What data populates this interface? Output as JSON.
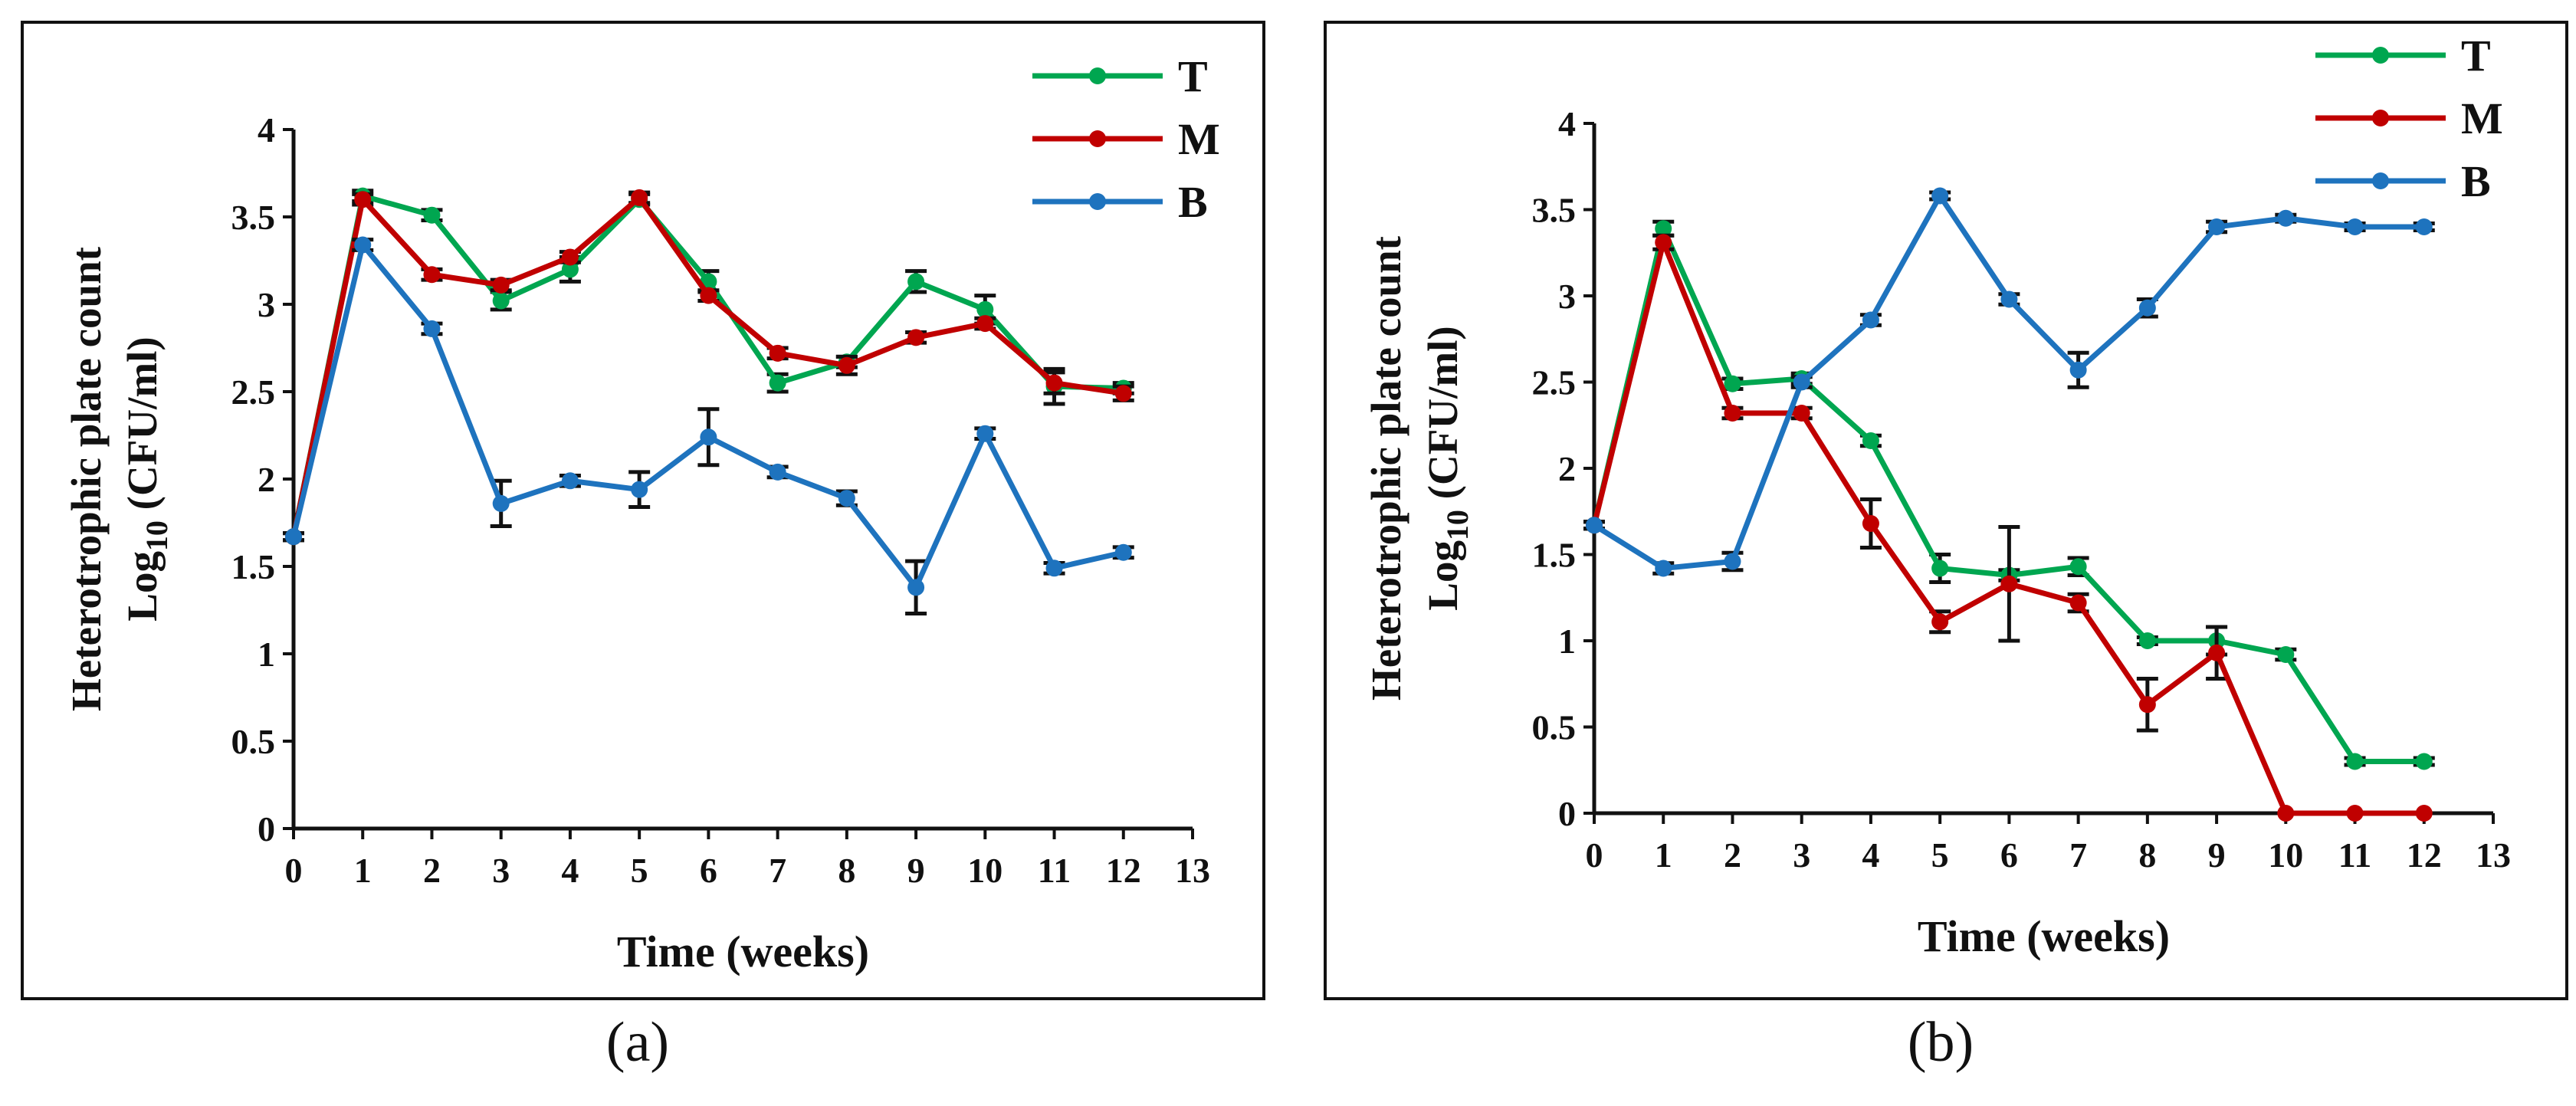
{
  "chart_data": [
    {
      "type": "line",
      "caption": "(a)",
      "xlabel": "Time (weeks)",
      "ylabel_line1": "Heterotrophic plate count",
      "ylabel_line2": {
        "base": "Log",
        "sub": "10",
        "rest": " (CFU/ml)"
      },
      "xlim": [
        0,
        13
      ],
      "ylim": [
        0,
        4
      ],
      "x_ticks": [
        "0",
        "1",
        "2",
        "3",
        "4",
        "5",
        "6",
        "7",
        "8",
        "9",
        "10",
        "11",
        "12",
        "13"
      ],
      "y_ticks": [
        "0",
        "0.5",
        "1",
        "1.5",
        "2",
        "2.5",
        "3",
        "3.5",
        "4"
      ],
      "legend_position": "top-right",
      "x": [
        0,
        1,
        2,
        3,
        4,
        5,
        6,
        7,
        8,
        9,
        10,
        11,
        12
      ],
      "series": [
        {
          "name": "T",
          "color": "#00A650",
          "values": [
            1.67,
            3.62,
            3.51,
            3.02,
            3.2,
            3.6,
            3.13,
            2.55,
            2.67,
            3.13,
            2.97,
            2.53,
            2.52
          ],
          "errors": [
            0.02,
            0.03,
            0.03,
            0.05,
            0.07,
            0.03,
            0.06,
            0.05,
            0.03,
            0.06,
            0.08,
            0.1,
            0.03
          ]
        },
        {
          "name": "M",
          "color": "#C00000",
          "values": [
            1.67,
            3.6,
            3.17,
            3.11,
            3.27,
            3.61,
            3.05,
            2.72,
            2.65,
            2.81,
            2.89,
            2.55,
            2.49
          ],
          "errors": [
            0.02,
            0.03,
            0.03,
            0.03,
            0.03,
            0.03,
            0.03,
            0.03,
            0.05,
            0.03,
            0.03,
            0.06,
            0.04
          ]
        },
        {
          "name": "B",
          "color": "#1E73BE",
          "values": [
            1.67,
            3.34,
            2.86,
            1.86,
            1.99,
            1.94,
            2.24,
            2.04,
            1.89,
            1.38,
            2.26,
            1.49,
            1.58
          ],
          "errors": [
            0.02,
            0.03,
            0.03,
            0.13,
            0.03,
            0.1,
            0.16,
            0.03,
            0.04,
            0.15,
            0.03,
            0.03,
            0.03
          ]
        }
      ]
    },
    {
      "type": "line",
      "caption": "(b)",
      "xlabel": "Time (weeks)",
      "ylabel_line1": "Heterotrophic plate count",
      "ylabel_line2": {
        "base": "Log",
        "sub": "10",
        "rest": " (CFU/ml)"
      },
      "xlim": [
        0,
        13
      ],
      "ylim": [
        0,
        4
      ],
      "x_ticks": [
        "0",
        "1",
        "2",
        "3",
        "4",
        "5",
        "6",
        "7",
        "8",
        "9",
        "10",
        "11",
        "12",
        "13"
      ],
      "y_ticks": [
        "0",
        "0.5",
        "1",
        "1.5",
        "2",
        "2.5",
        "3",
        "3.5",
        "4"
      ],
      "legend_position": "top-right",
      "x": [
        0,
        1,
        2,
        3,
        4,
        5,
        6,
        7,
        8,
        9,
        10,
        11,
        12
      ],
      "series": [
        {
          "name": "T",
          "color": "#00A650",
          "values": [
            1.67,
            3.39,
            2.49,
            2.52,
            2.16,
            1.42,
            1.38,
            1.43,
            1.0,
            1.0,
            0.92,
            0.3,
            0.3
          ],
          "errors": [
            0.02,
            0.04,
            0.03,
            0.03,
            0.03,
            0.08,
            0.03,
            0.05,
            0.02,
            0.08,
            0.03,
            0.02,
            0.02
          ]
        },
        {
          "name": "M",
          "color": "#C00000",
          "values": [
            1.67,
            3.31,
            2.32,
            2.32,
            1.68,
            1.11,
            1.33,
            1.22,
            0.63,
            0.93,
            0.0,
            0.0,
            0.0
          ],
          "errors": [
            0.02,
            0.04,
            0.03,
            0.03,
            0.14,
            0.06,
            0.33,
            0.05,
            0.15,
            0.15,
            0.0,
            0.0,
            0.0
          ]
        },
        {
          "name": "B",
          "color": "#1E73BE",
          "values": [
            1.67,
            1.42,
            1.46,
            2.5,
            2.86,
            3.58,
            2.98,
            2.57,
            2.93,
            3.4,
            3.45,
            3.4,
            3.4
          ],
          "errors": [
            0.02,
            0.03,
            0.05,
            0.03,
            0.03,
            0.02,
            0.03,
            0.1,
            0.05,
            0.03,
            0.02,
            0.02,
            0.02
          ]
        }
      ]
    }
  ]
}
